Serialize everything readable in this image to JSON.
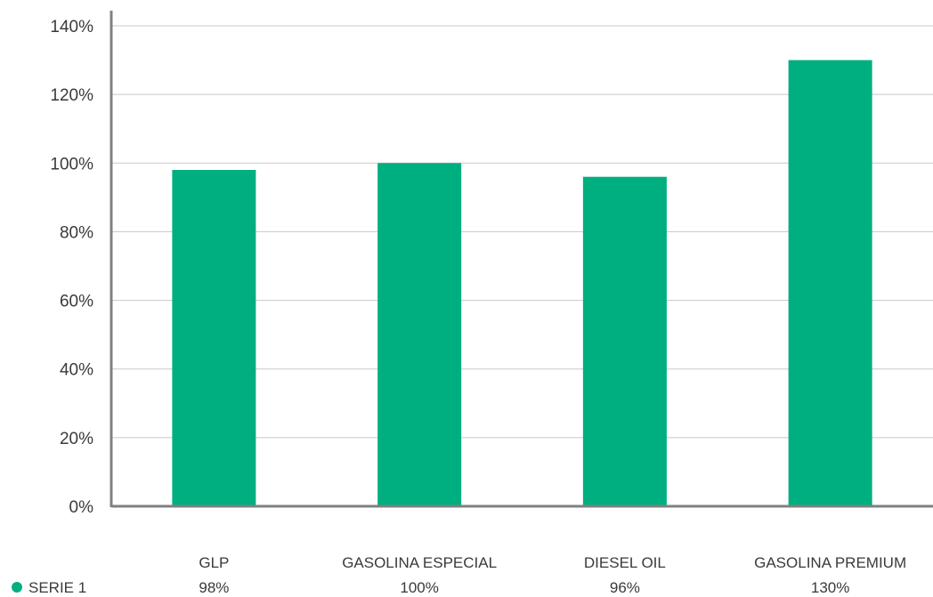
{
  "chart_data": {
    "type": "bar",
    "categories": [
      "GLP",
      "GASOLINA ESPECIAL",
      "DIESEL OIL",
      "GASOLINA PREMIUM"
    ],
    "series": [
      {
        "name": "SERIE 1",
        "values": [
          98,
          100,
          96,
          130
        ],
        "value_labels": [
          "98%",
          "100%",
          "96%",
          "130%"
        ],
        "color": "#00AF80"
      }
    ],
    "ylim": [
      0,
      140
    ],
    "yticks": [
      0,
      20,
      40,
      60,
      80,
      100,
      120,
      140
    ],
    "ytick_labels": [
      "0%",
      "20%",
      "40%",
      "60%",
      "80%",
      "100%",
      "120%",
      "140%"
    ],
    "title": "",
    "xlabel": "",
    "ylabel": "",
    "grid": true,
    "legend": "bottom-left, inline with data table",
    "colors": {
      "bar": "#00AF80",
      "grid": "#c8c8c8",
      "axis": "#808080",
      "text": "#3a3a3a"
    }
  }
}
